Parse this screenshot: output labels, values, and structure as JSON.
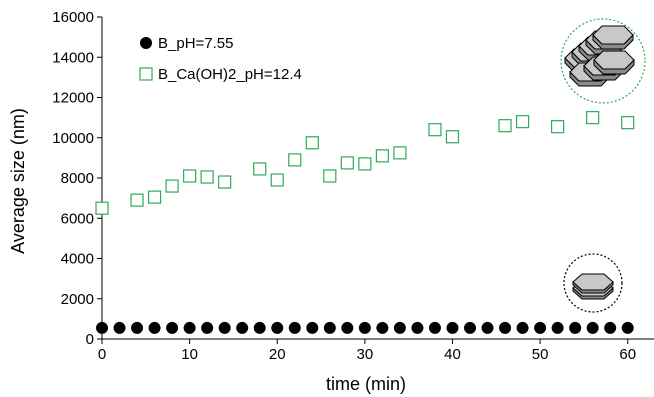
{
  "chart_data": {
    "type": "scatter",
    "xlabel": "time (min)",
    "ylabel": "Average size (nm)",
    "xlim": [
      0,
      63
    ],
    "ylim": [
      0,
      16000
    ],
    "xticks": [
      0,
      10,
      20,
      30,
      40,
      50,
      60
    ],
    "yticks": [
      0,
      2000,
      4000,
      6000,
      8000,
      10000,
      12000,
      14000,
      16000
    ],
    "grid": false,
    "legend_position": "top-left",
    "series": [
      {
        "name": "B_pH=7.55",
        "marker": "filled-circle",
        "color": "#000000",
        "x": [
          0,
          2,
          4,
          6,
          8,
          10,
          12,
          14,
          16,
          18,
          20,
          22,
          24,
          26,
          28,
          30,
          32,
          34,
          36,
          38,
          40,
          42,
          44,
          46,
          48,
          50,
          52,
          54,
          56,
          58,
          60
        ],
        "y": [
          550,
          550,
          550,
          550,
          550,
          550,
          550,
          550,
          550,
          550,
          550,
          550,
          550,
          550,
          550,
          550,
          550,
          550,
          550,
          550,
          550,
          550,
          550,
          550,
          550,
          550,
          550,
          550,
          550,
          550,
          550
        ]
      },
      {
        "name": "B_Ca(OH)2_pH=12.4",
        "marker": "open-square",
        "color": "#2eaa5a",
        "x": [
          0,
          4,
          6,
          8,
          10,
          12,
          14,
          18,
          20,
          22,
          24,
          26,
          28,
          30,
          32,
          34,
          38,
          40,
          46,
          48,
          52,
          56,
          60
        ],
        "y": [
          6500,
          6900,
          7050,
          7600,
          8100,
          8050,
          7800,
          8450,
          7900,
          8900,
          9750,
          8100,
          8750,
          8700,
          9100,
          9250,
          10400,
          10050,
          10600,
          10800,
          10550,
          11000,
          10750
        ]
      }
    ]
  },
  "icons": {
    "large_aggregate": "stacked-hexagonal-platelets-icon",
    "single_platelet": "hexagonal-platelet-icon",
    "large_ring_color": "#2eaa5a",
    "small_ring_color": "#000000",
    "platelet_color": "#c8c8c8"
  }
}
